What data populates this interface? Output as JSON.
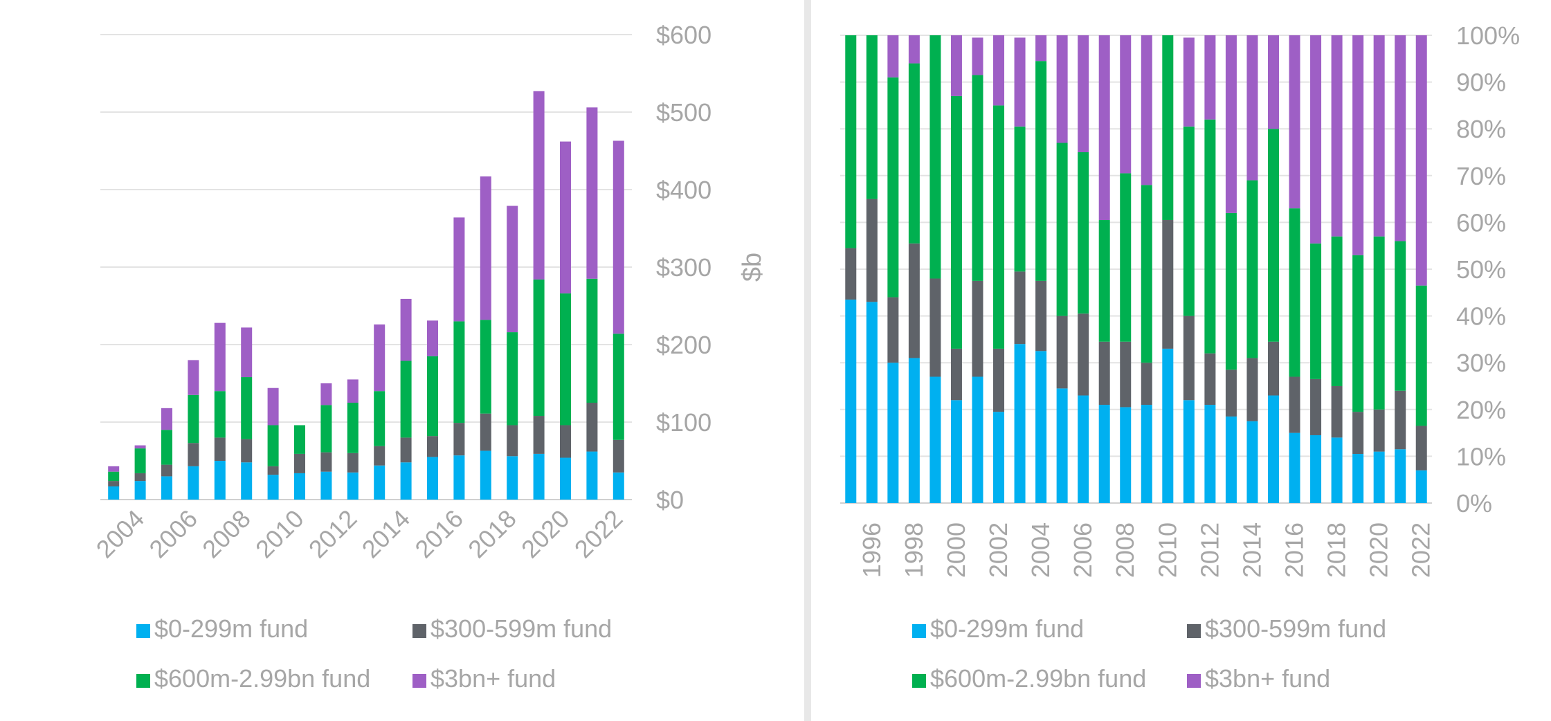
{
  "chart_data": [
    {
      "type": "bar",
      "stacked": true,
      "categories": [
        "2003",
        "2004",
        "2005",
        "2006",
        "2007",
        "2008",
        "2009",
        "2010",
        "2011",
        "2012",
        "2013",
        "2014",
        "2015",
        "2016",
        "2017",
        "2018",
        "2019",
        "2020",
        "2021",
        "2022"
      ],
      "x_tick_labels": [
        "2004",
        "2006",
        "2008",
        "2010",
        "2012",
        "2014",
        "2016",
        "2018",
        "2020",
        "2022"
      ],
      "series": [
        {
          "name": "$0-299m fund",
          "color": "#00b0f0",
          "values": [
            17,
            24,
            30,
            43,
            50,
            48,
            32,
            34,
            36,
            35,
            44,
            48,
            55,
            57,
            63,
            56,
            59,
            54,
            62,
            35
          ]
        },
        {
          "name": "$300-599m fund",
          "color": "#5f6369",
          "values": [
            7,
            10,
            15,
            30,
            30,
            30,
            11,
            25,
            25,
            25,
            25,
            32,
            27,
            42,
            48,
            40,
            49,
            42,
            63,
            42
          ]
        },
        {
          "name": "$600m-2.99bn fund",
          "color": "#00b050",
          "values": [
            12,
            32,
            45,
            62,
            60,
            80,
            53,
            37,
            61,
            65,
            71,
            99,
            103,
            131,
            121,
            120,
            176,
            170,
            160,
            137
          ]
        },
        {
          "name": "$3bn+ fund",
          "color": "#9e5fc5",
          "values": [
            7,
            4,
            28,
            45,
            88,
            64,
            48,
            0,
            28,
            30,
            86,
            80,
            46,
            134,
            185,
            163,
            243,
            196,
            221,
            249
          ]
        }
      ],
      "ylabel": "$b",
      "ylim": [
        0,
        600
      ],
      "y_ticks": [
        "$0",
        "$100",
        "$200",
        "$300",
        "$400",
        "$500",
        "$600"
      ],
      "y_axis_side": "right",
      "grid": true,
      "legend": "bottom"
    },
    {
      "type": "bar",
      "stacked": true,
      "percent": true,
      "categories": [
        "1995",
        "1996",
        "1997",
        "1998",
        "1999",
        "2000",
        "2001",
        "2002",
        "2003",
        "2004",
        "2005",
        "2006",
        "2007",
        "2008",
        "2009",
        "2010",
        "2011",
        "2012",
        "2013",
        "2014",
        "2015",
        "2016",
        "2017",
        "2018",
        "2019",
        "2020",
        "2021",
        "2022"
      ],
      "x_tick_labels": [
        "1996",
        "1998",
        "2000",
        "2002",
        "2004",
        "2006",
        "2008",
        "2010",
        "2012",
        "2014",
        "2016",
        "2018",
        "2020",
        "2022"
      ],
      "series": [
        {
          "name": "$0-299m fund",
          "color": "#00b0f0",
          "values": [
            43.5,
            43,
            30,
            31,
            27,
            22,
            27,
            19.5,
            34,
            32.5,
            24.5,
            23,
            21,
            20.5,
            21,
            33,
            22,
            21,
            18.5,
            17.5,
            23,
            15,
            14.5,
            14,
            10.5,
            11,
            11.5,
            7
          ]
        },
        {
          "name": "$300-599m fund",
          "color": "#5f6369",
          "values": [
            11,
            22,
            14,
            24.5,
            21,
            11,
            20.5,
            13.5,
            15.5,
            15,
            15.5,
            17.5,
            13.5,
            14,
            9,
            27.5,
            18,
            11,
            10,
            13.5,
            11.5,
            12,
            12,
            11,
            9,
            9,
            12.5,
            9.5
          ]
        },
        {
          "name": "$600m-2.99bn fund",
          "color": "#00b050",
          "values": [
            45.5,
            35,
            47,
            38.5,
            52,
            54,
            44,
            52,
            31,
            47,
            37,
            34.5,
            26,
            36,
            38,
            39.5,
            40.5,
            50,
            33.5,
            38,
            45.5,
            36,
            29,
            32,
            33.5,
            37,
            32,
            30
          ]
        },
        {
          "name": "$3bn+ fund",
          "color": "#9e5fc5",
          "values": [
            0,
            0,
            9,
            6,
            0,
            13,
            8,
            15,
            19,
            5.5,
            23,
            25,
            39.5,
            29.5,
            32,
            0,
            19,
            18,
            38,
            31,
            20,
            37,
            44.5,
            43,
            47,
            43,
            44,
            53.5
          ]
        }
      ],
      "ylim": [
        0,
        100
      ],
      "y_ticks": [
        "0%",
        "10%",
        "20%",
        "30%",
        "40%",
        "50%",
        "60%",
        "70%",
        "80%",
        "90%",
        "100%"
      ],
      "y_axis_side": "right",
      "grid": true,
      "legend": "bottom"
    }
  ]
}
